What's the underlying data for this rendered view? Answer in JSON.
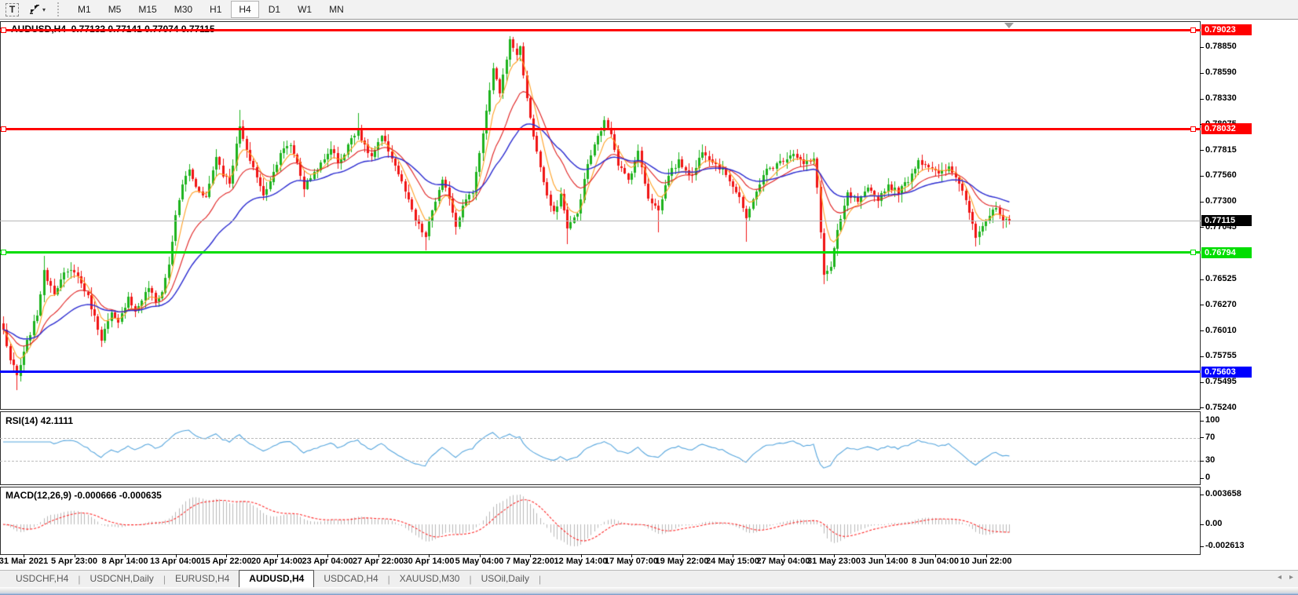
{
  "toolbar": {
    "text_tool_label": "T",
    "timeframes": [
      "M1",
      "M5",
      "M15",
      "M30",
      "H1",
      "H4",
      "D1",
      "W1",
      "MN"
    ],
    "active_timeframe": "H4"
  },
  "chart": {
    "title": "AUDUSD,H4  0.77132 0.77141 0.77074 0.77115",
    "symbol": "AUDUSD",
    "timeframe": "H4",
    "open": "0.77132",
    "high": "0.77141",
    "low": "0.77074",
    "close": "0.77115"
  },
  "price_axis": {
    "decimals": 5,
    "ticks": [
      0.7885,
      0.7859,
      0.7833,
      0.78075,
      0.77815,
      0.7756,
      0.773,
      0.77045,
      0.76525,
      0.7627,
      0.7601,
      0.75755,
      0.75495,
      0.7524
    ]
  },
  "current_price": {
    "value": 0.77115,
    "label": "0.77115",
    "badge_bg": "#000000",
    "badge_fg": "#ffffff",
    "line_color": "#b8b8b8"
  },
  "hlines": [
    {
      "value": 0.79023,
      "label": "0.79023",
      "color": "#ff0000",
      "handles": true
    },
    {
      "value": 0.78032,
      "label": "0.78032",
      "color": "#ff0000",
      "handles": true
    },
    {
      "value": 0.76794,
      "label": "0.76794",
      "color": "#00dd00",
      "handles": true
    },
    {
      "value": 0.75603,
      "label": "0.75603",
      "color": "#0000ff",
      "handles": false
    }
  ],
  "rsi_panel": {
    "label": "RSI(14) 42.1111",
    "value": 42.1111,
    "levels": [
      100,
      70,
      30,
      0
    ],
    "dashed_levels": [
      70,
      30
    ],
    "line_color": "#55a5dd"
  },
  "macd_panel": {
    "label": "MACD(12,26,9) -0.000666 -0.000635",
    "main_value": -0.000666,
    "signal_value": -0.000635,
    "axis_labels": [
      "0.003658",
      "0.00",
      "-0.002613"
    ],
    "axis_values": [
      0.003658,
      0,
      -0.002613
    ],
    "hist_color": "#b9b9b9",
    "signal_color": "#ff2a2a"
  },
  "time_axis": {
    "labels": [
      "31 Mar 2021",
      "5 Apr 23:00",
      "8 Apr 14:00",
      "13 Apr 04:00",
      "15 Apr 22:00",
      "20 Apr 14:00",
      "23 Apr 04:00",
      "27 Apr 22:00",
      "30 Apr 14:00",
      "5 May 04:00",
      "7 May 22:00",
      "12 May 14:00",
      "17 May 07:00",
      "19 May 22:00",
      "24 May 15:00",
      "27 May 04:00",
      "31 May 23:00",
      "3 Jun 14:00",
      "8 Jun 04:00",
      "10 Jun 22:00"
    ]
  },
  "tabs": {
    "items": [
      "USDCHF,H4",
      "USDCNH,Daily",
      "EURUSD,H4",
      "AUDUSD,H4",
      "USDCAD,H4",
      "XAUUSD,M30",
      "USOil,Daily"
    ],
    "active": "AUDUSD,H4",
    "scroll_left_icon": "◂",
    "scroll_right_icon": "▸"
  },
  "colors": {
    "up": "#1db31d",
    "down": "#f01414",
    "ma_fast": "#ffa023",
    "ma_mid": "#e02020",
    "ma_slow": "#2b2bd0"
  },
  "chart_data": {
    "type": "candlestick",
    "symbol": "AUDUSD",
    "timeframe": "H4",
    "x_range": [
      "31 Mar 2021",
      "11 Jun 2021"
    ],
    "ylim": [
      0.7523,
      0.791
    ],
    "candle_count": 299,
    "last_price": 0.77115,
    "horizontal_lines": [
      0.79023,
      0.78032,
      0.76794,
      0.75603
    ],
    "close_path_anchors": [
      [
        0,
        0.7602
      ],
      [
        2,
        0.7572
      ],
      [
        4,
        0.7556
      ],
      [
        7,
        0.759
      ],
      [
        10,
        0.7618
      ],
      [
        12,
        0.766
      ],
      [
        15,
        0.764
      ],
      [
        18,
        0.7658
      ],
      [
        21,
        0.7662
      ],
      [
        25,
        0.7635
      ],
      [
        29,
        0.7594
      ],
      [
        32,
        0.7618
      ],
      [
        34,
        0.7608
      ],
      [
        37,
        0.7636
      ],
      [
        39,
        0.762
      ],
      [
        43,
        0.7645
      ],
      [
        45,
        0.763
      ],
      [
        47,
        0.764
      ],
      [
        49,
        0.7668
      ],
      [
        51,
        0.7715
      ],
      [
        53,
        0.7748
      ],
      [
        55,
        0.7762
      ],
      [
        57,
        0.7745
      ],
      [
        60,
        0.7735
      ],
      [
        63,
        0.7776
      ],
      [
        65,
        0.7758
      ],
      [
        67,
        0.775
      ],
      [
        70,
        0.7805
      ],
      [
        72,
        0.778
      ],
      [
        74,
        0.7765
      ],
      [
        77,
        0.7736
      ],
      [
        80,
        0.776
      ],
      [
        82,
        0.778
      ],
      [
        85,
        0.7787
      ],
      [
        87,
        0.777
      ],
      [
        89,
        0.7744
      ],
      [
        92,
        0.776
      ],
      [
        95,
        0.7772
      ],
      [
        97,
        0.7785
      ],
      [
        99,
        0.777
      ],
      [
        101,
        0.7778
      ],
      [
        103,
        0.7795
      ],
      [
        105,
        0.7802
      ],
      [
        107,
        0.7785
      ],
      [
        109,
        0.7775
      ],
      [
        112,
        0.7795
      ],
      [
        115,
        0.7775
      ],
      [
        117,
        0.7758
      ],
      [
        119,
        0.774
      ],
      [
        122,
        0.7712
      ],
      [
        125,
        0.7695
      ],
      [
        127,
        0.7722
      ],
      [
        130,
        0.775
      ],
      [
        132,
        0.7735
      ],
      [
        134,
        0.7706
      ],
      [
        136,
        0.7728
      ],
      [
        139,
        0.774
      ],
      [
        142,
        0.78
      ],
      [
        145,
        0.7862
      ],
      [
        147,
        0.784
      ],
      [
        150,
        0.7891
      ],
      [
        152,
        0.7878
      ],
      [
        153,
        0.7885
      ],
      [
        155,
        0.7832
      ],
      [
        158,
        0.778
      ],
      [
        161,
        0.7735
      ],
      [
        163,
        0.7718
      ],
      [
        165,
        0.7738
      ],
      [
        167,
        0.7705
      ],
      [
        170,
        0.7718
      ],
      [
        173,
        0.7768
      ],
      [
        176,
        0.7795
      ],
      [
        178,
        0.781
      ],
      [
        180,
        0.78
      ],
      [
        182,
        0.7768
      ],
      [
        185,
        0.7752
      ],
      [
        188,
        0.778
      ],
      [
        191,
        0.7735
      ],
      [
        194,
        0.7722
      ],
      [
        197,
        0.7758
      ],
      [
        200,
        0.777
      ],
      [
        204,
        0.7756
      ],
      [
        207,
        0.7782
      ],
      [
        211,
        0.7768
      ],
      [
        214,
        0.7758
      ],
      [
        218,
        0.7735
      ],
      [
        220,
        0.7712
      ],
      [
        223,
        0.7742
      ],
      [
        226,
        0.7762
      ],
      [
        230,
        0.777
      ],
      [
        234,
        0.778
      ],
      [
        237,
        0.7768
      ],
      [
        240,
        0.7772
      ],
      [
        241,
        0.7745
      ],
      [
        243,
        0.7657
      ],
      [
        245,
        0.7665
      ],
      [
        247,
        0.77
      ],
      [
        250,
        0.7738
      ],
      [
        253,
        0.773
      ],
      [
        256,
        0.7742
      ],
      [
        259,
        0.7734
      ],
      [
        262,
        0.7747
      ],
      [
        265,
        0.774
      ],
      [
        268,
        0.7752
      ],
      [
        271,
        0.7772
      ],
      [
        275,
        0.7764
      ],
      [
        277,
        0.7757
      ],
      [
        280,
        0.7764
      ],
      [
        283,
        0.775
      ],
      [
        286,
        0.7722
      ],
      [
        288,
        0.7697
      ],
      [
        291,
        0.7712
      ],
      [
        294,
        0.7724
      ],
      [
        296,
        0.771
      ],
      [
        298,
        0.77115
      ]
    ],
    "wick_extremes": [
      {
        "i": 4,
        "low": 0.7542
      },
      {
        "i": 12,
        "high": 0.7676
      },
      {
        "i": 29,
        "low": 0.7585
      },
      {
        "i": 70,
        "high": 0.7822
      },
      {
        "i": 105,
        "high": 0.7819
      },
      {
        "i": 125,
        "low": 0.7682
      },
      {
        "i": 150,
        "high": 0.7896
      },
      {
        "i": 167,
        "low": 0.7688
      },
      {
        "i": 178,
        "high": 0.7816
      },
      {
        "i": 194,
        "low": 0.77
      },
      {
        "i": 220,
        "low": 0.769
      },
      {
        "i": 243,
        "low": 0.7648
      },
      {
        "i": 288,
        "low": 0.7686
      }
    ],
    "overlays": [
      {
        "name": "EMA fast",
        "period": 6,
        "color": "#ffa023"
      },
      {
        "name": "EMA mid",
        "period": 16,
        "color": "#e02020"
      },
      {
        "name": "EMA slow",
        "period": 34,
        "color": "#2b2bd0"
      }
    ],
    "indicators": [
      {
        "type": "RSI",
        "period": 14,
        "last_value": 42.1111,
        "levels": [
          70,
          30
        ]
      },
      {
        "type": "MACD",
        "fast": 12,
        "slow": 26,
        "signal": 9,
        "last_main": -0.000666,
        "last_signal": -0.000635,
        "range": [
          -0.002613,
          0.003658
        ]
      }
    ],
    "render_seed": 7
  }
}
